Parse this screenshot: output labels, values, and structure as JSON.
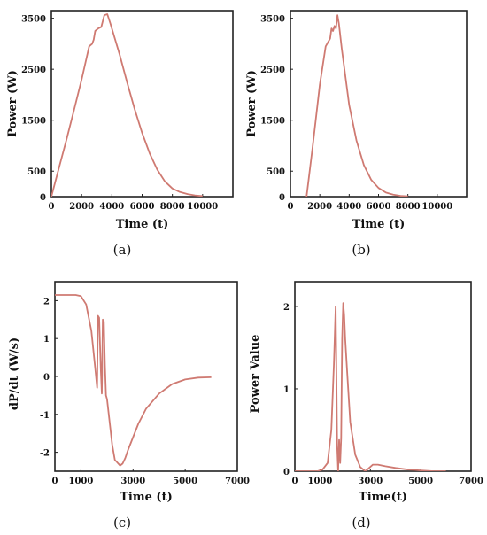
{
  "chart_data": [
    {
      "type": "line",
      "panel": "(a)",
      "xlabel": "Time (t)",
      "ylabel": "Power (W)",
      "xlim": [
        0,
        12000
      ],
      "ylim": [
        0,
        3650
      ],
      "xticks": [
        0,
        2000,
        4000,
        6000,
        8000,
        10000
      ],
      "yticks": [
        0,
        500,
        1500,
        2500,
        3500
      ],
      "series": [
        {
          "color": "#cf7a72",
          "x": [
            0,
            500,
            1000,
            1500,
            2000,
            2500,
            2700,
            2800,
            2900,
            3100,
            3300,
            3500,
            3700,
            3900,
            4500,
            5000,
            5500,
            6000,
            6500,
            7000,
            7500,
            8000,
            8500,
            9000,
            9500,
            10000
          ],
          "y": [
            0,
            560,
            1120,
            1700,
            2300,
            2950,
            3000,
            3080,
            3250,
            3300,
            3330,
            3560,
            3580,
            3400,
            2800,
            2250,
            1720,
            1250,
            850,
            530,
            300,
            160,
            90,
            50,
            25,
            10
          ]
        }
      ]
    },
    {
      "type": "line",
      "panel": "(b)",
      "xlabel": "Time (t)",
      "ylabel": "Power (W)",
      "xlim": [
        0,
        12000
      ],
      "ylim": [
        0,
        3650
      ],
      "xticks": [
        0,
        2000,
        4000,
        6000,
        8000,
        10000
      ],
      "yticks": [
        0,
        500,
        1500,
        2500,
        3500
      ],
      "series": [
        {
          "color": "#cf7a72",
          "x": [
            1100,
            1500,
            2000,
            2400,
            2600,
            2700,
            2800,
            2900,
            3000,
            3100,
            3200,
            3300,
            3500,
            4000,
            4500,
            5000,
            5500,
            6000,
            6500,
            7000,
            7500,
            8000
          ],
          "y": [
            0,
            950,
            2200,
            2950,
            3050,
            3100,
            3300,
            3250,
            3350,
            3300,
            3560,
            3400,
            2900,
            1800,
            1100,
            620,
            330,
            170,
            80,
            40,
            15,
            5
          ]
        }
      ]
    },
    {
      "type": "line",
      "panel": "(c)",
      "xlabel": "Time (t)",
      "ylabel": "dP/dt (W/s)",
      "xlim": [
        0,
        7000
      ],
      "ylim": [
        -2.5,
        2.5
      ],
      "xticks": [
        0,
        1000,
        3000,
        5000,
        7000
      ],
      "yticks": [
        -2,
        -1,
        0,
        1,
        2
      ],
      "series": [
        {
          "color": "#cf7a72",
          "x": [
            0,
            400,
            800,
            1000,
            1200,
            1400,
            1550,
            1620,
            1650,
            1700,
            1760,
            1800,
            1840,
            1880,
            1920,
            1960,
            2000,
            2100,
            2200,
            2300,
            2500,
            2600,
            2700,
            2800,
            3000,
            3200,
            3500,
            4000,
            4500,
            5000,
            5500,
            6000
          ],
          "y": [
            2.15,
            2.15,
            2.15,
            2.12,
            1.9,
            1.2,
            0.2,
            -0.3,
            1.6,
            1.55,
            0.2,
            -0.45,
            1.5,
            1.45,
            0.3,
            -0.5,
            -0.6,
            -1.2,
            -1.8,
            -2.2,
            -2.35,
            -2.3,
            -2.15,
            -1.95,
            -1.6,
            -1.25,
            -0.85,
            -0.45,
            -0.2,
            -0.08,
            -0.03,
            -0.02
          ]
        }
      ]
    },
    {
      "type": "line",
      "panel": "(d)",
      "xlabel": "Time(t)",
      "ylabel": "Power Value",
      "xlim": [
        0,
        7000
      ],
      "ylim": [
        0,
        2.3
      ],
      "xticks": [
        0,
        1000,
        3000,
        5000,
        7000
      ],
      "yticks": [
        0,
        1,
        2
      ],
      "series": [
        {
          "color": "#cf7a72",
          "x": [
            0,
            900,
            1100,
            1300,
            1450,
            1550,
            1620,
            1680,
            1720,
            1760,
            1800,
            1840,
            1880,
            1920,
            1960,
            2000,
            2080,
            2200,
            2400,
            2600,
            2800,
            2950,
            3100,
            3300,
            3600,
            4000,
            4500,
            5000,
            5500,
            6000
          ],
          "y": [
            0,
            0,
            0.02,
            0.1,
            0.5,
            1.3,
            2.0,
            0.3,
            0.0,
            0.38,
            0.1,
            0.4,
            1.6,
            2.04,
            1.9,
            1.6,
            1.2,
            0.6,
            0.2,
            0.05,
            0.0,
            0.04,
            0.08,
            0.08,
            0.06,
            0.04,
            0.02,
            0.01,
            0.0,
            0.0
          ]
        }
      ]
    }
  ]
}
